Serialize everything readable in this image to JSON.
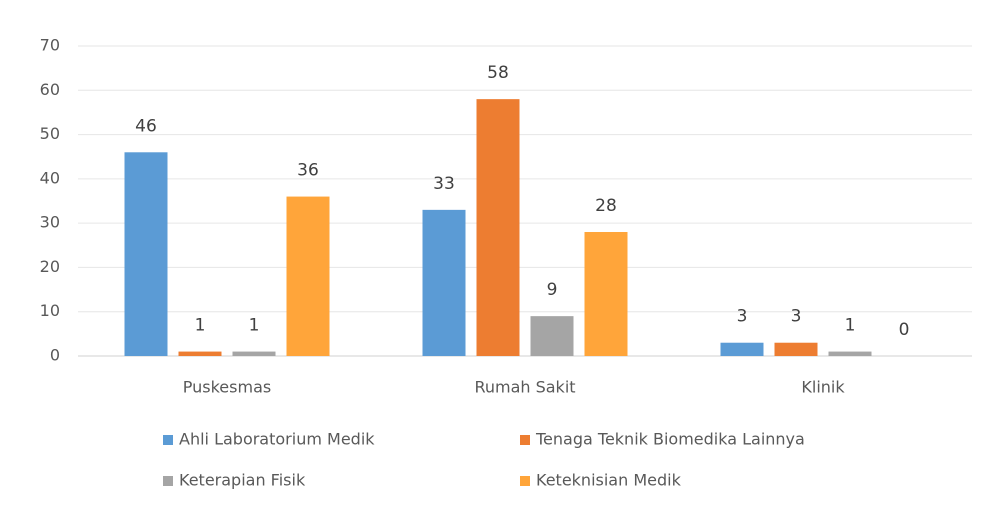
{
  "chart_data": {
    "type": "bar",
    "categories": [
      "Puskesmas",
      "Rumah Sakit",
      "Klinik"
    ],
    "series": [
      {
        "name": "Ahli Laboratorium Medik",
        "color": "#5b9bd5",
        "values": [
          46,
          33,
          3
        ]
      },
      {
        "name": "Tenaga Teknik Biomedika Lainnya",
        "color": "#ed7d31",
        "values": [
          1,
          58,
          3
        ]
      },
      {
        "name": "Keterapian Fisik",
        "color": "#a5a5a5",
        "values": [
          1,
          9,
          1
        ]
      },
      {
        "name": "Keteknisian Medik",
        "color": "#ffa53a",
        "values": [
          36,
          28,
          0
        ]
      }
    ],
    "ylim": [
      0,
      70
    ],
    "yticks": [
      0,
      10,
      20,
      30,
      40,
      50,
      60,
      70
    ],
    "grid": true
  }
}
